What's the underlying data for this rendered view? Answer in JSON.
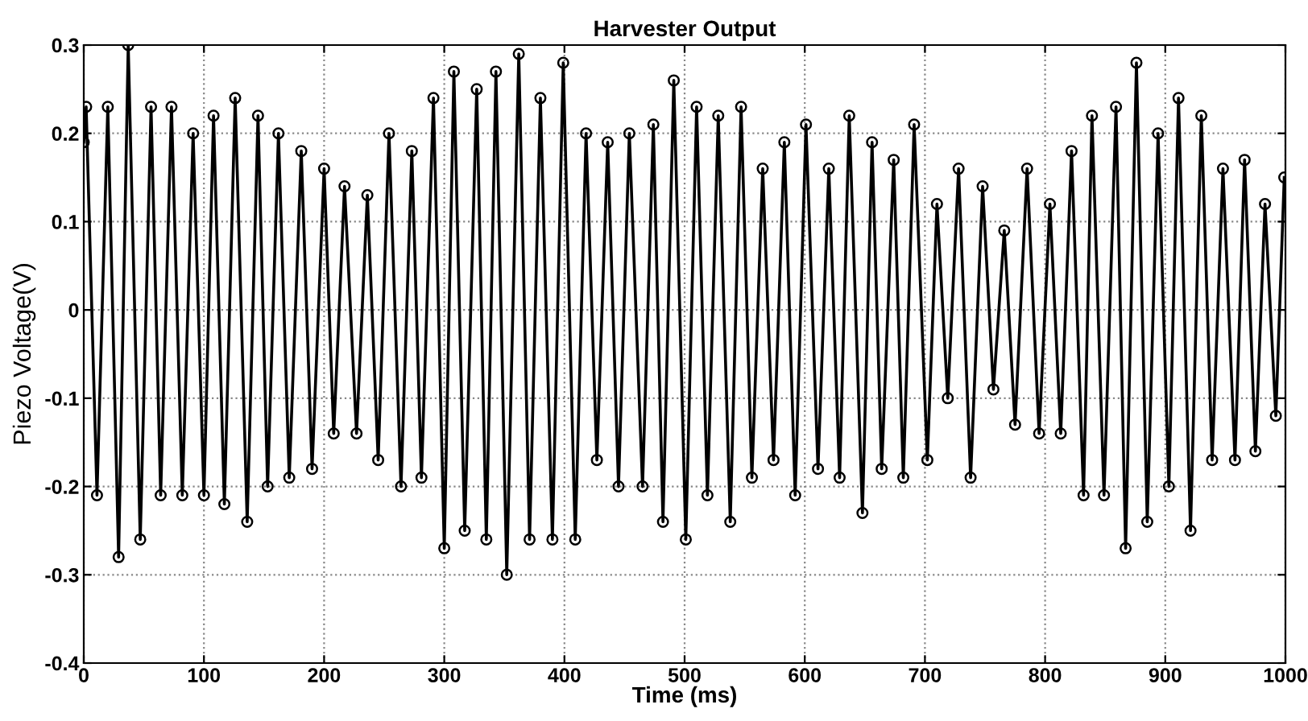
{
  "chart_data": {
    "type": "line",
    "title": "Harvester Output",
    "xlabel": "Time (ms)",
    "ylabel": "Piezo Voltage(V)",
    "x": [
      0,
      2,
      11,
      20,
      29,
      37,
      47,
      56,
      64,
      73,
      82,
      91,
      100,
      108,
      117,
      126,
      136,
      145,
      153,
      162,
      171,
      181,
      190,
      200,
      208,
      217,
      227,
      236,
      245,
      254,
      264,
      273,
      281,
      291,
      300,
      308,
      317,
      327,
      335,
      343,
      352,
      362,
      371,
      380,
      390,
      399,
      409,
      418,
      427,
      436,
      445,
      454,
      465,
      474,
      482,
      491,
      501,
      510,
      519,
      528,
      538,
      547,
      556,
      565,
      574,
      583,
      592,
      601,
      611,
      620,
      629,
      637,
      648,
      656,
      664,
      674,
      682,
      691,
      702,
      710,
      719,
      728,
      738,
      748,
      757,
      766,
      775,
      785,
      795,
      804,
      813,
      822,
      832,
      839,
      849,
      859,
      867,
      876,
      885,
      894,
      903,
      911,
      921,
      930,
      939,
      948,
      958,
      966,
      975,
      983,
      992,
      999
    ],
    "series": [
      {
        "color": "#000000",
        "values": [
          0.19,
          0.23,
          -0.21,
          0.23,
          -0.28,
          0.3,
          -0.26,
          0.23,
          -0.21,
          0.23,
          -0.21,
          0.2,
          -0.21,
          0.22,
          -0.22,
          0.24,
          -0.24,
          0.22,
          -0.2,
          0.2,
          -0.19,
          0.18,
          -0.18,
          0.16,
          -0.14,
          0.14,
          -0.14,
          0.13,
          -0.17,
          0.2,
          -0.2,
          0.18,
          -0.19,
          0.24,
          -0.27,
          0.27,
          -0.25,
          0.25,
          -0.26,
          0.27,
          -0.3,
          0.29,
          -0.26,
          0.24,
          -0.26,
          0.28,
          -0.26,
          0.2,
          -0.17,
          0.19,
          -0.2,
          0.2,
          -0.2,
          0.21,
          -0.24,
          0.26,
          -0.26,
          0.23,
          -0.21,
          0.22,
          -0.24,
          0.23,
          -0.19,
          0.16,
          -0.17,
          0.19,
          -0.21,
          0.21,
          -0.18,
          0.16,
          -0.19,
          0.22,
          -0.23,
          0.19,
          -0.18,
          0.17,
          -0.19,
          0.21,
          -0.17,
          0.12,
          -0.1,
          0.16,
          -0.19,
          0.14,
          -0.09,
          0.09,
          -0.13,
          0.16,
          -0.14,
          0.12,
          -0.14,
          0.18,
          -0.21,
          0.22,
          -0.21,
          0.23,
          -0.27,
          0.28,
          -0.24,
          0.2,
          -0.2,
          0.24,
          -0.25,
          0.22,
          -0.17,
          0.16,
          -0.17,
          0.17,
          -0.16,
          0.12,
          -0.12,
          0.15
        ]
      }
    ],
    "xlim": [
      0,
      1000
    ],
    "xticks": [
      0,
      100,
      200,
      300,
      400,
      500,
      600,
      700,
      800,
      900,
      1000
    ],
    "ylim": [
      -0.4,
      0.3
    ],
    "yticks": [
      -0.4,
      -0.3,
      -0.2,
      -0.1,
      0,
      0.1,
      0.2,
      0.3
    ],
    "grid": true,
    "marker": "circle",
    "line_style": "solid",
    "legend": false
  }
}
